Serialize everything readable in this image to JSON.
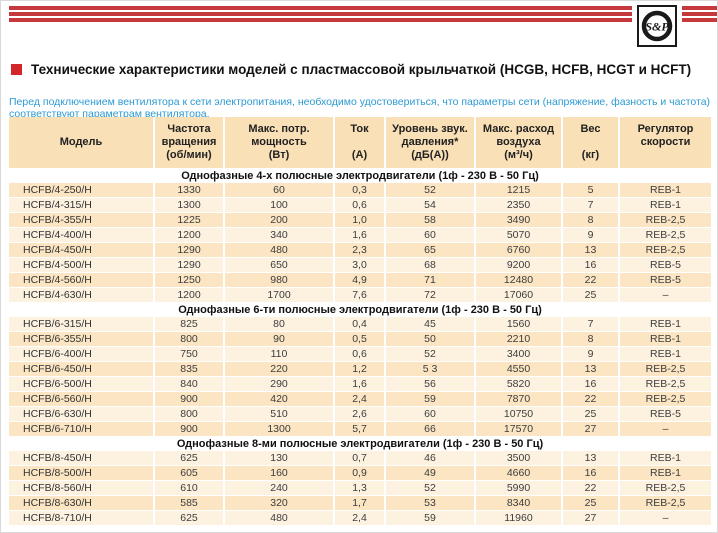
{
  "brand": {
    "logo_text": "S&P"
  },
  "header": {
    "title": "Технические характеристики моделей с пластмассовой крыльчаткой (HCGB, HCFB, HCGT и HCFT)",
    "intro": "Перед подключением вентилятора к сети электропитания, необходимо удостовериться, что параметры сети (напряжение, фазность и частота) соответствуют параметрам вентилятора."
  },
  "colors": {
    "accent_red": "#c5393d",
    "bullet_red": "#d2262b",
    "intro_blue": "#2d9ad3",
    "table_header_bg": "#f9e0b6",
    "row_dark": "#fbe5c2",
    "row_light": "#fdf2e0"
  },
  "table": {
    "columns": [
      {
        "name": "model",
        "lines": [
          "Модель"
        ]
      },
      {
        "name": "rpm",
        "lines": [
          "Частота",
          "вращения",
          "(об/мин)"
        ]
      },
      {
        "name": "max-power",
        "lines": [
          "Макс. потр.",
          "мощность",
          "(Вт)"
        ]
      },
      {
        "name": "current",
        "lines": [
          "Ток",
          "",
          "(А)"
        ]
      },
      {
        "name": "sound-level",
        "lines": [
          "Уровень звук.",
          "давления*",
          "(дБ(А))"
        ]
      },
      {
        "name": "max-airflow",
        "lines": [
          "Макс. расход",
          "воздуха",
          "(м³/ч)"
        ]
      },
      {
        "name": "weight",
        "lines": [
          "Вес",
          "",
          "(кг)"
        ]
      },
      {
        "name": "speed-regulator",
        "lines": [
          "Регулятор",
          "скорости",
          ""
        ]
      }
    ],
    "sections": [
      {
        "title": "Однофазные 4-х полюсные электродвигатели (1ф - 230 В - 50 Гц)",
        "rows": [
          [
            "HCFB/4-250/H",
            "1330",
            "60",
            "0,3",
            "52",
            "1215",
            "5",
            "REB-1"
          ],
          [
            "HCFB/4-315/H",
            "1300",
            "100",
            "0,6",
            "54",
            "2350",
            "7",
            "REB-1"
          ],
          [
            "HCFB/4-355/H",
            "1225",
            "200",
            "1,0",
            "58",
            "3490",
            "8",
            "REB-2,5"
          ],
          [
            "HCFB/4-400/H",
            "1200",
            "340",
            "1,6",
            "60",
            "5070",
            "9",
            "REB-2,5"
          ],
          [
            "HCFB/4-450/H",
            "1290",
            "480",
            "2,3",
            "65",
            "6760",
            "13",
            "REB-2,5"
          ],
          [
            "HCFB/4-500/H",
            "1290",
            "650",
            "3,0",
            "68",
            "9200",
            "16",
            "REB-5"
          ],
          [
            "HCFB/4-560/H",
            "1250",
            "980",
            "4,9",
            "71",
            "12480",
            "22",
            "REB-5"
          ],
          [
            "HCFB/4-630/H",
            "1200",
            "1700",
            "7,6",
            "72",
            "17060",
            "25",
            "–"
          ]
        ]
      },
      {
        "title": "Однофазные 6-ти полюсные электродвигатели (1ф - 230 В - 50 Гц)",
        "rows": [
          [
            "HCFB/6-315/H",
            "825",
            "80",
            "0,4",
            "45",
            "1560",
            "7",
            "REB-1"
          ],
          [
            "HCFB/6-355/H",
            "800",
            "90",
            "0,5",
            "50",
            "2210",
            "8",
            "REB-1"
          ],
          [
            "HCFB/6-400/H",
            "750",
            "110",
            "0,6",
            "52",
            "3400",
            "9",
            "REB-1"
          ],
          [
            "HCFB/6-450/H",
            "835",
            "220",
            "1,2",
            "5 3",
            "4550",
            "13",
            "REB-2,5"
          ],
          [
            "HCFB/6-500/H",
            "840",
            "290",
            "1,6",
            "56",
            "5820",
            "16",
            "REB-2,5"
          ],
          [
            "HCFB/6-560/H",
            "900",
            "420",
            "2,4",
            "59",
            "7870",
            "22",
            "REB-2,5"
          ],
          [
            "HCFB/6-630/H",
            "800",
            "510",
            "2,6",
            "60",
            "10750",
            "25",
            "REB-5"
          ],
          [
            "HCFB/6-710/H",
            "900",
            "1300",
            "5,7",
            "66",
            "17570",
            "27",
            "–"
          ]
        ]
      },
      {
        "title": "Однофазные 8-ми полюсные электродвигатели (1ф - 230 В - 50 Гц)",
        "rows": [
          [
            "HCFB/8-450/H",
            "625",
            "130",
            "0,7",
            "46",
            "3500",
            "13",
            "REB-1"
          ],
          [
            "HCFB/8-500/H",
            "605",
            "160",
            "0,9",
            "49",
            "4660",
            "16",
            "REB-1"
          ],
          [
            "HCFB/8-560/H",
            "610",
            "240",
            "1,3",
            "52",
            "5990",
            "22",
            "REB-2,5"
          ],
          [
            "HCFB/8-630/H",
            "585",
            "320",
            "1,7",
            "53",
            "8340",
            "25",
            "REB-2,5"
          ],
          [
            "HCFB/8-710/H",
            "625",
            "480",
            "2,4",
            "59",
            "11960",
            "27",
            "–"
          ]
        ]
      }
    ]
  }
}
